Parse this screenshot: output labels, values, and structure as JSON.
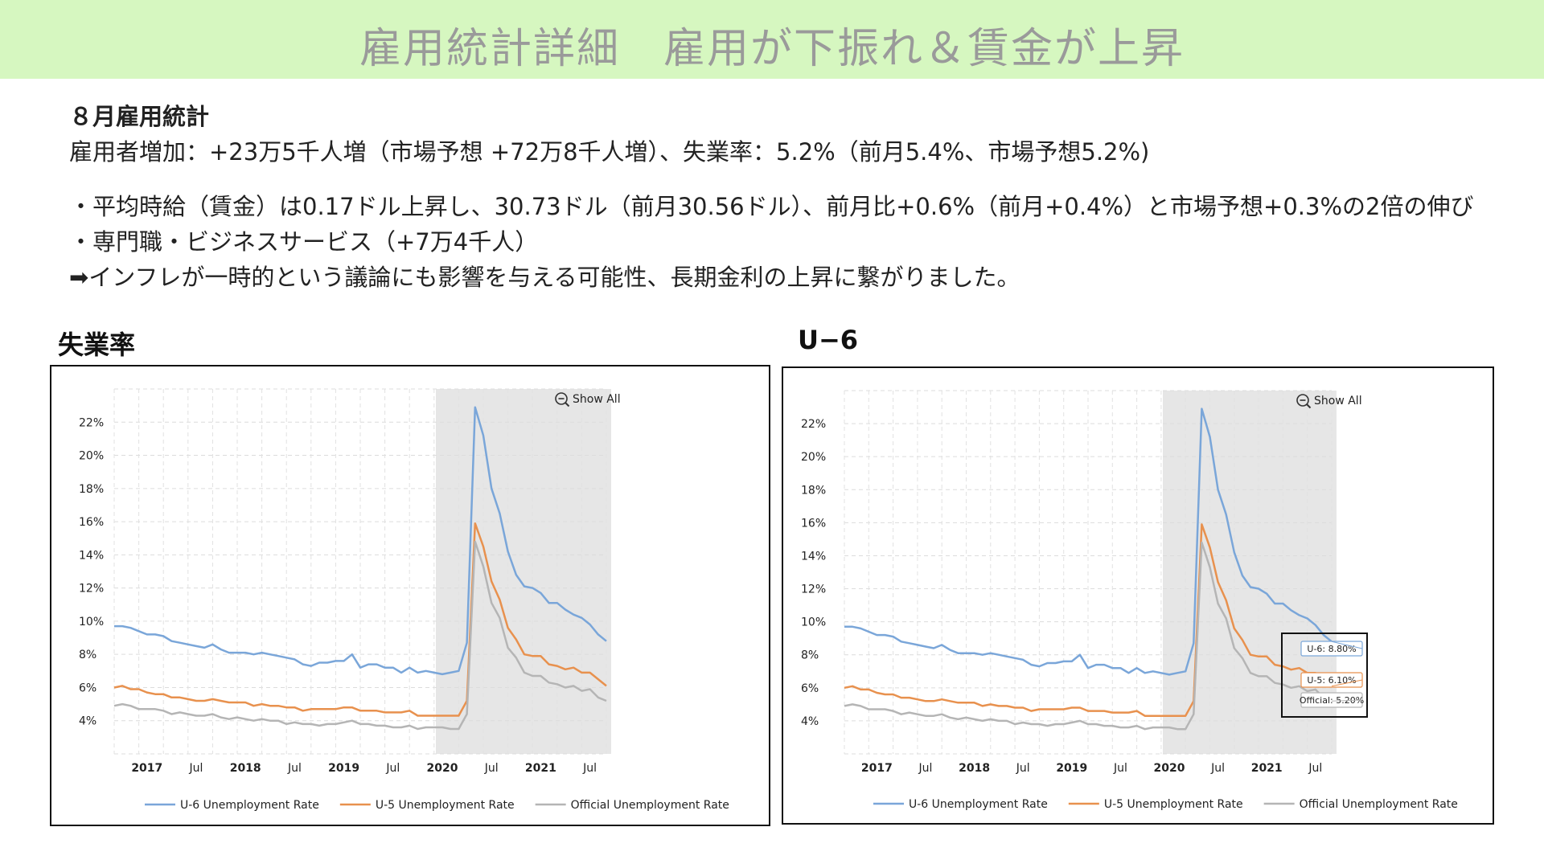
{
  "header": {
    "title": "雇用統計詳細　雇用が下振れ＆賃金が上昇"
  },
  "summary": {
    "heading": "８月雇用統計",
    "line1": "雇用者増加：+23万5千人増（市場予想 +72万8千人増）、失業率：5.2%（前月5.4%、市場予想5.2%)",
    "bullet1": "・平均時給（賃金）は0.17ドル上昇し、30.73ドル（前月30.56ドル）、前月比+0.6%（前月+0.4%）と市場予想+0.3%の2倍の伸び",
    "bullet2": "・専門職・ビジネスサービス（+7万4千人）",
    "conclusion": "➡インフレが一時的という議論にも影響を与える可能性、長期金利の上昇に繋がりました。"
  },
  "panels": {
    "left_title": "失業率",
    "right_title": "U−6",
    "show_all_label": "Show All",
    "zoom_icon": "zoom-out-icon"
  },
  "tooltip": {
    "u6": "U-6: 8.80%",
    "u5": "U-5: 6.10%",
    "official": "Official: 5.20%"
  },
  "colors": {
    "u6": "#7aa6d9",
    "u5": "#e8914e",
    "official": "#b5b5b5",
    "shade": "#e6e6e6"
  },
  "chart_data": {
    "type": "line",
    "start": "2016-09",
    "y_ticks": [
      "4%",
      "6%",
      "8%",
      "10%",
      "12%",
      "14%",
      "16%",
      "18%",
      "20%",
      "22%"
    ],
    "ylim": [
      2,
      24
    ],
    "x_ticks": [
      {
        "label": "2017",
        "pos": "2017-01",
        "year": true
      },
      {
        "label": "Jul",
        "pos": "2017-07",
        "year": false
      },
      {
        "label": "2018",
        "pos": "2018-01",
        "year": true
      },
      {
        "label": "Jul",
        "pos": "2018-07",
        "year": false
      },
      {
        "label": "2019",
        "pos": "2019-01",
        "year": true
      },
      {
        "label": "Jul",
        "pos": "2019-07",
        "year": false
      },
      {
        "label": "2020",
        "pos": "2020-01",
        "year": true
      },
      {
        "label": "Jul",
        "pos": "2020-07",
        "year": false
      },
      {
        "label": "2021",
        "pos": "2021-01",
        "year": true
      },
      {
        "label": "Jul",
        "pos": "2021-07",
        "year": false
      }
    ],
    "highlight_range": [
      "2020-01",
      "2021-08"
    ],
    "series": [
      {
        "name": "U-6 Unemployment Rate",
        "key": "u6",
        "values": [
          9.7,
          9.7,
          9.6,
          9.4,
          9.2,
          9.2,
          9.1,
          8.8,
          8.7,
          8.6,
          8.5,
          8.4,
          8.6,
          8.3,
          8.1,
          8.1,
          8.1,
          8.0,
          8.1,
          8.0,
          7.9,
          7.8,
          7.7,
          7.4,
          7.3,
          7.5,
          7.5,
          7.6,
          7.6,
          8.0,
          7.2,
          7.4,
          7.4,
          7.2,
          7.2,
          6.9,
          7.2,
          6.9,
          7.0,
          6.9,
          6.8,
          6.9,
          7.0,
          8.7,
          22.9,
          21.2,
          18.0,
          16.5,
          14.2,
          12.8,
          12.1,
          12.0,
          11.7,
          11.1,
          11.1,
          10.7,
          10.4,
          10.2,
          9.8,
          9.2,
          8.8
        ]
      },
      {
        "name": "U-5 Unemployment Rate",
        "key": "u5",
        "values": [
          6.0,
          6.1,
          5.9,
          5.9,
          5.7,
          5.6,
          5.6,
          5.4,
          5.4,
          5.3,
          5.2,
          5.2,
          5.3,
          5.2,
          5.1,
          5.1,
          5.1,
          4.9,
          5.0,
          4.9,
          4.9,
          4.8,
          4.8,
          4.6,
          4.7,
          4.7,
          4.7,
          4.7,
          4.8,
          4.8,
          4.6,
          4.6,
          4.6,
          4.5,
          4.5,
          4.5,
          4.6,
          4.3,
          4.3,
          4.3,
          4.3,
          4.3,
          4.3,
          5.2,
          15.9,
          14.5,
          12.4,
          11.3,
          9.6,
          8.9,
          8.0,
          7.9,
          7.9,
          7.4,
          7.3,
          7.1,
          7.2,
          6.9,
          6.9,
          6.5,
          6.1
        ]
      },
      {
        "name": "Official Unemployment Rate",
        "key": "official",
        "values": [
          4.9,
          5.0,
          4.9,
          4.7,
          4.7,
          4.7,
          4.6,
          4.4,
          4.5,
          4.4,
          4.3,
          4.3,
          4.4,
          4.2,
          4.1,
          4.2,
          4.1,
          4.0,
          4.1,
          4.0,
          4.0,
          3.8,
          3.9,
          3.8,
          3.8,
          3.7,
          3.8,
          3.8,
          3.9,
          4.0,
          3.8,
          3.8,
          3.7,
          3.7,
          3.6,
          3.6,
          3.7,
          3.5,
          3.6,
          3.6,
          3.6,
          3.5,
          3.5,
          4.4,
          14.8,
          13.3,
          11.1,
          10.2,
          8.4,
          7.8,
          6.9,
          6.7,
          6.7,
          6.3,
          6.2,
          6.0,
          6.1,
          5.8,
          5.9,
          5.4,
          5.2
        ]
      }
    ]
  }
}
